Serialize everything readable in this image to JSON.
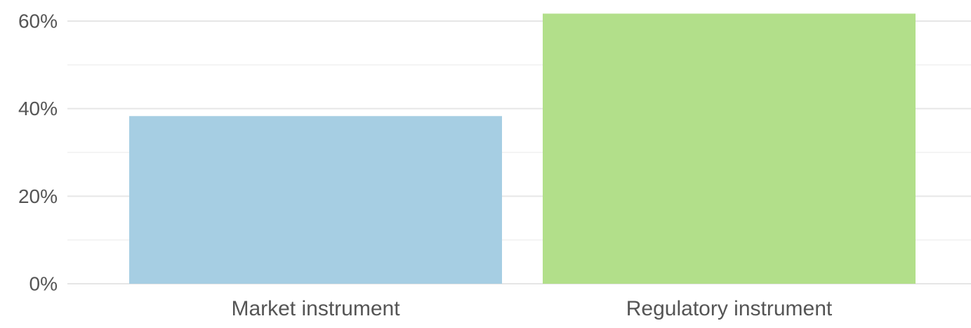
{
  "chart_data": {
    "type": "bar",
    "title": "",
    "xlabel": "",
    "ylabel": "",
    "categories": [
      "Market instrument",
      "Regulatory instrument"
    ],
    "values": [
      38.3,
      61.7
    ],
    "unit": "%",
    "ylim": [
      0,
      60
    ],
    "yticks": [
      0,
      20,
      40,
      60
    ],
    "ytick_labels": [
      "0%",
      "20%",
      "40%",
      "60%"
    ],
    "minor_gridlines": [
      10,
      30,
      50
    ],
    "grid": true,
    "legend": "none",
    "colors": [
      "#a6cee3",
      "#b2df8a"
    ]
  }
}
